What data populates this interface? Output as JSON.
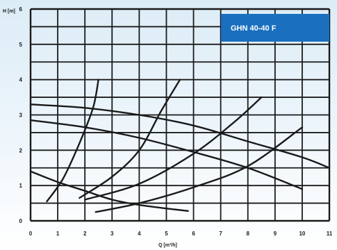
{
  "chart_data": {
    "type": "line",
    "title": "GHN 40-40 F",
    "xlabel": "Q [m³/h]",
    "ylabel": "H [m]",
    "xlim": [
      0,
      11
    ],
    "ylim": [
      0,
      6
    ],
    "x_ticks": [
      "0",
      "1",
      "2",
      "3",
      "4",
      "5",
      "6",
      "7",
      "8",
      "9",
      "10",
      "11"
    ],
    "y_ticks": [
      "0",
      "1",
      "2",
      "3",
      "4",
      "5",
      "6"
    ],
    "grid": true,
    "colors": {
      "title_box": "#1a6fbf",
      "line": "#1a1a1a",
      "grid": "#1a1a1a",
      "background_top": "#dcecf6"
    },
    "series": [
      {
        "points": [
          [
            0,
            3.3
          ],
          [
            2,
            3.2
          ],
          [
            4,
            3.0
          ],
          [
            6,
            2.7
          ],
          [
            8,
            2.25
          ],
          [
            10,
            1.8
          ],
          [
            11,
            1.5
          ]
        ]
      },
      {
        "points": [
          [
            0,
            2.85
          ],
          [
            2,
            2.65
          ],
          [
            4,
            2.35
          ],
          [
            6,
            1.95
          ],
          [
            8,
            1.5
          ],
          [
            10,
            0.9
          ]
        ]
      },
      {
        "points": [
          [
            0,
            1.4
          ],
          [
            1,
            1.1
          ],
          [
            2,
            0.85
          ],
          [
            3,
            0.6
          ],
          [
            4,
            0.45
          ],
          [
            5,
            0.35
          ],
          [
            5.8,
            0.28
          ]
        ]
      },
      {
        "points": [
          [
            0.6,
            0.55
          ],
          [
            1.2,
            1.2
          ],
          [
            1.8,
            2.2
          ],
          [
            2.3,
            3.2
          ],
          [
            2.5,
            4.0
          ]
        ]
      },
      {
        "points": [
          [
            1.8,
            0.65
          ],
          [
            3,
            1.25
          ],
          [
            4,
            2.0
          ],
          [
            4.8,
            3.1
          ],
          [
            5.5,
            4.0
          ]
        ]
      },
      {
        "points": [
          [
            2,
            0.6
          ],
          [
            4,
            1.05
          ],
          [
            6,
            1.9
          ],
          [
            7.5,
            2.8
          ],
          [
            8.5,
            3.5
          ]
        ]
      },
      {
        "points": [
          [
            2.4,
            0.25
          ],
          [
            4,
            0.5
          ],
          [
            6,
            0.95
          ],
          [
            8,
            1.55
          ],
          [
            10,
            2.65
          ]
        ]
      }
    ]
  }
}
